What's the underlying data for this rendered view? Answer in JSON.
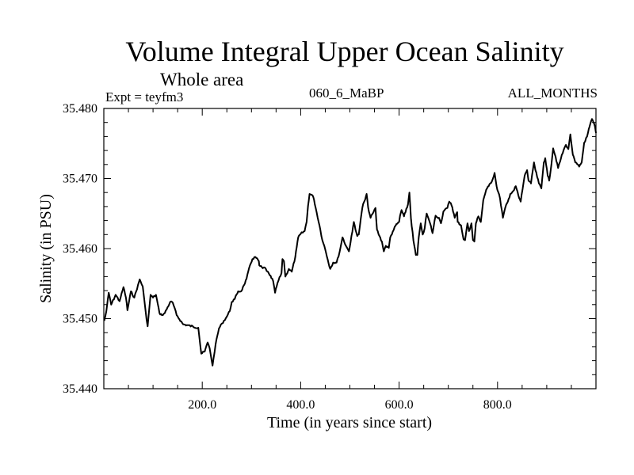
{
  "chart_data": {
    "type": "line",
    "title": "Volume Integral Upper Ocean Salinity",
    "subtitle": "Whole area",
    "left_label": "Expt = teyfm3",
    "center_label": "060_6_MaBP",
    "right_label": "ALL_MONTHS",
    "xlabel": "Time (in years since start)",
    "ylabel": "Salinity (in PSU)",
    "xlim": [
      0,
      1000
    ],
    "ylim": [
      35.44,
      35.48
    ],
    "x_ticks": [
      200,
      400,
      600,
      800
    ],
    "x_tick_labels": [
      "200.0",
      "400.0",
      "600.0",
      "800.0"
    ],
    "x_minor_step": 50,
    "y_ticks": [
      35.44,
      35.45,
      35.46,
      35.47,
      35.48
    ],
    "y_tick_labels": [
      "35.440",
      "35.450",
      "35.460",
      "35.470",
      "35.480"
    ],
    "y_minor_step": 0.002,
    "grid": false,
    "line_color": "#000000",
    "series": [
      {
        "name": "Salinity",
        "points": [
          [
            1,
            35.4497
          ],
          [
            5,
            35.451
          ],
          [
            10,
            35.4537
          ],
          [
            15,
            35.452
          ],
          [
            24,
            35.4534
          ],
          [
            32,
            35.4525
          ],
          [
            40,
            35.4545
          ],
          [
            45,
            35.453
          ],
          [
            48,
            35.4512
          ],
          [
            55,
            35.4539
          ],
          [
            62,
            35.453
          ],
          [
            73,
            35.4556
          ],
          [
            79,
            35.4546
          ],
          [
            85,
            35.451
          ],
          [
            89,
            35.4489
          ],
          [
            95,
            35.4534
          ],
          [
            100,
            35.453
          ],
          [
            106,
            35.4534
          ],
          [
            113,
            35.4508
          ],
          [
            118,
            35.4505
          ],
          [
            124,
            35.4508
          ],
          [
            135,
            35.4524
          ],
          [
            140,
            35.4523
          ],
          [
            148,
            35.4505
          ],
          [
            161,
            35.4492
          ],
          [
            192,
            35.4487
          ],
          [
            198,
            35.445
          ],
          [
            205,
            35.4453
          ],
          [
            211,
            35.4466
          ],
          [
            215,
            35.4458
          ],
          [
            221,
            35.4433
          ],
          [
            227,
            35.4463
          ],
          [
            234,
            35.4486
          ],
          [
            240,
            35.4493
          ],
          [
            250,
            35.4503
          ],
          [
            256,
            35.4511
          ],
          [
            260,
            35.4524
          ],
          [
            266,
            35.4528
          ],
          [
            273,
            35.4539
          ],
          [
            279,
            35.4539
          ],
          [
            285,
            35.4548
          ],
          [
            290,
            35.4557
          ],
          [
            297,
            35.4576
          ],
          [
            302,
            35.4585
          ],
          [
            308,
            35.4588
          ],
          [
            315,
            35.4582
          ],
          [
            316,
            35.4576
          ],
          [
            323,
            35.4572
          ],
          [
            327,
            35.4573
          ],
          [
            337,
            35.4562
          ],
          [
            344,
            35.4554
          ],
          [
            348,
            35.4537
          ],
          [
            353,
            35.4551
          ],
          [
            361,
            35.4565
          ],
          [
            363,
            35.4585
          ],
          [
            366,
            35.4582
          ],
          [
            369,
            35.456
          ],
          [
            376,
            35.4571
          ],
          [
            382,
            35.4567
          ],
          [
            389,
            35.4588
          ],
          [
            392,
            35.4602
          ],
          [
            395,
            35.4616
          ],
          [
            400,
            35.4621
          ],
          [
            408,
            35.4625
          ],
          [
            412,
            35.4638
          ],
          [
            415,
            35.4661
          ],
          [
            418,
            35.4678
          ],
          [
            424,
            35.4676
          ],
          [
            427,
            35.467
          ],
          [
            440,
            35.4627
          ],
          [
            442,
            35.4618
          ],
          [
            448,
            35.4604
          ],
          [
            455,
            35.4584
          ],
          [
            460,
            35.4571
          ],
          [
            466,
            35.458
          ],
          [
            473,
            35.458
          ],
          [
            479,
            35.4595
          ],
          [
            485,
            35.4616
          ],
          [
            492,
            35.4604
          ],
          [
            498,
            35.4596
          ],
          [
            505,
            35.4624
          ],
          [
            508,
            35.4638
          ],
          [
            515,
            35.4618
          ],
          [
            518,
            35.462
          ],
          [
            524,
            35.4652
          ],
          [
            527,
            35.4664
          ],
          [
            531,
            35.467
          ],
          [
            534,
            35.4678
          ],
          [
            537,
            35.4659
          ],
          [
            542,
            35.4644
          ],
          [
            548,
            35.4652
          ],
          [
            552,
            35.4658
          ],
          [
            555,
            35.4627
          ],
          [
            560,
            35.4618
          ],
          [
            565,
            35.461
          ],
          [
            569,
            35.4596
          ],
          [
            573,
            35.4604
          ],
          [
            579,
            35.4601
          ],
          [
            582,
            35.4616
          ],
          [
            587,
            35.4624
          ],
          [
            593,
            35.4633
          ],
          [
            600,
            35.4638
          ],
          [
            602,
            35.4647
          ],
          [
            605,
            35.4655
          ],
          [
            610,
            35.4646
          ],
          [
            613,
            35.4652
          ],
          [
            618,
            35.4663
          ],
          [
            621,
            35.468
          ],
          [
            624,
            35.4644
          ],
          [
            629,
            35.4612
          ],
          [
            634,
            35.4591
          ],
          [
            637,
            35.4591
          ],
          [
            640,
            35.4616
          ],
          [
            644,
            35.4636
          ],
          [
            648,
            35.462
          ],
          [
            652,
            35.4629
          ],
          [
            656,
            35.465
          ],
          [
            663,
            35.4636
          ],
          [
            668,
            35.4622
          ],
          [
            674,
            35.4647
          ],
          [
            681,
            35.4644
          ],
          [
            685,
            35.4636
          ],
          [
            690,
            35.4653
          ],
          [
            698,
            35.4658
          ],
          [
            702,
            35.4667
          ],
          [
            705,
            35.4665
          ],
          [
            708,
            35.4659
          ],
          [
            713,
            35.4644
          ],
          [
            718,
            35.4652
          ],
          [
            719,
            35.4638
          ],
          [
            726,
            35.4633
          ],
          [
            731,
            35.4613
          ],
          [
            734,
            35.4612
          ],
          [
            739,
            35.4636
          ],
          [
            742,
            35.4625
          ],
          [
            747,
            35.4636
          ],
          [
            750,
            35.4612
          ],
          [
            753,
            35.461
          ],
          [
            756,
            35.4636
          ],
          [
            761,
            35.4646
          ],
          [
            766,
            35.4638
          ],
          [
            771,
            35.4669
          ],
          [
            777,
            35.4684
          ],
          [
            782,
            35.4689
          ],
          [
            789,
            35.4697
          ],
          [
            794,
            35.4708
          ],
          [
            798,
            35.4689
          ],
          [
            805,
            35.4672
          ],
          [
            811,
            35.4644
          ],
          [
            816,
            35.4659
          ],
          [
            821,
            35.4667
          ],
          [
            826,
            35.4678
          ],
          [
            834,
            35.4684
          ],
          [
            837,
            35.4689
          ],
          [
            844,
            35.4672
          ],
          [
            847,
            35.4667
          ],
          [
            855,
            35.4704
          ],
          [
            860,
            35.4712
          ],
          [
            863,
            35.4697
          ],
          [
            868,
            35.4693
          ],
          [
            874,
            35.4723
          ],
          [
            877,
            35.4712
          ],
          [
            884,
            35.4693
          ],
          [
            889,
            35.4686
          ],
          [
            894,
            35.4723
          ],
          [
            897,
            35.4729
          ],
          [
            902,
            35.4704
          ],
          [
            905,
            35.4697
          ],
          [
            908,
            35.4712
          ],
          [
            913,
            35.4743
          ],
          [
            918,
            35.4731
          ],
          [
            923,
            35.4715
          ],
          [
            929,
            35.4729
          ],
          [
            934,
            35.474
          ],
          [
            939,
            35.4748
          ],
          [
            944,
            35.4742
          ],
          [
            948,
            35.4763
          ],
          [
            953,
            35.4734
          ],
          [
            958,
            35.4723
          ],
          [
            966,
            35.4717
          ],
          [
            971,
            35.4723
          ],
          [
            976,
            35.4751
          ],
          [
            982,
            35.476
          ],
          [
            987,
            35.4774
          ],
          [
            992,
            35.4785
          ],
          [
            995,
            35.478
          ],
          [
            998,
            35.4774
          ],
          [
            1000,
            35.4765
          ]
        ]
      }
    ]
  }
}
